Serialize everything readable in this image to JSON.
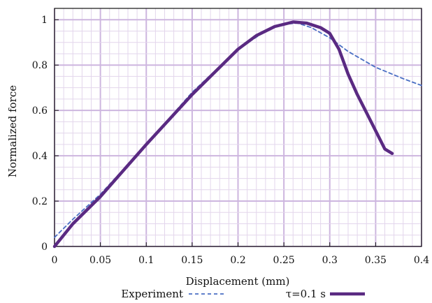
{
  "chart_data": {
    "type": "line",
    "title": "",
    "xlabel": "Displacement (mm)",
    "ylabel": "Normalized force",
    "xlim": [
      0,
      0.4
    ],
    "ylim": [
      0,
      1.05
    ],
    "x_ticks": [
      "0",
      "0.05",
      "0.1",
      "0.15",
      "0.2",
      "0.25",
      "0.3",
      "0.35",
      "0.4"
    ],
    "y_ticks": [
      "0",
      "0.2",
      "0.4",
      "0.6",
      "0.8",
      "1"
    ],
    "grid": true,
    "legend_position": "bottom",
    "series": [
      {
        "name": "Experiment",
        "style": "dashed",
        "color": "#4a6fc4",
        "points": [
          [
            0,
            0.04
          ],
          [
            0.02,
            0.12
          ],
          [
            0.05,
            0.23
          ],
          [
            0.1,
            0.45
          ],
          [
            0.15,
            0.68
          ],
          [
            0.2,
            0.87
          ],
          [
            0.23,
            0.95
          ],
          [
            0.25,
            0.98
          ],
          [
            0.265,
            0.985
          ],
          [
            0.28,
            0.965
          ],
          [
            0.3,
            0.92
          ],
          [
            0.32,
            0.86
          ],
          [
            0.35,
            0.79
          ],
          [
            0.38,
            0.74
          ],
          [
            0.4,
            0.71
          ]
        ]
      },
      {
        "name": "τ=0.1 s",
        "style": "solid",
        "color": "#5a2a82",
        "points": [
          [
            0,
            0
          ],
          [
            0.02,
            0.1
          ],
          [
            0.05,
            0.22
          ],
          [
            0.1,
            0.45
          ],
          [
            0.15,
            0.67
          ],
          [
            0.2,
            0.87
          ],
          [
            0.22,
            0.93
          ],
          [
            0.24,
            0.97
          ],
          [
            0.26,
            0.99
          ],
          [
            0.275,
            0.985
          ],
          [
            0.29,
            0.965
          ],
          [
            0.3,
            0.94
          ],
          [
            0.31,
            0.87
          ],
          [
            0.32,
            0.76
          ],
          [
            0.33,
            0.67
          ],
          [
            0.34,
            0.59
          ],
          [
            0.35,
            0.51
          ],
          [
            0.36,
            0.43
          ],
          [
            0.368,
            0.41
          ]
        ]
      }
    ]
  }
}
